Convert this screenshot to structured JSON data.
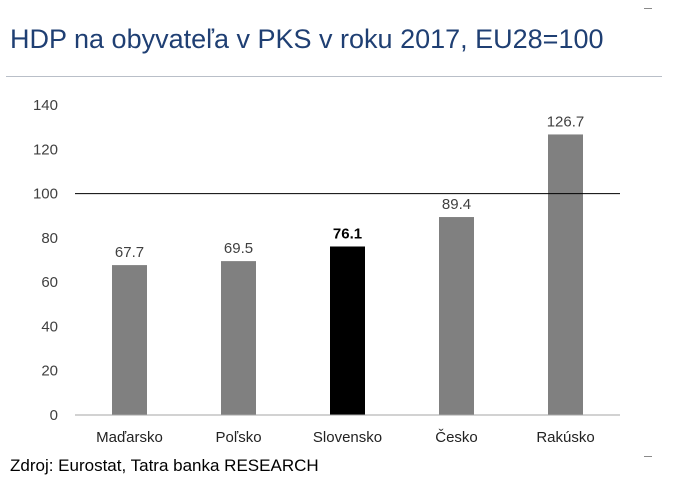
{
  "header": {
    "title": "HDP na obyvateľa v PKS v roku 2017, EU28=100"
  },
  "footer": {
    "source": "Zdroj: Eurostat, Tatra banka RESEARCH"
  },
  "chart_data": {
    "type": "bar",
    "title": "HDP na obyvateľa v PKS v roku 2017, EU28=100",
    "xlabel": "",
    "ylabel": "",
    "categories": [
      "Maďarsko",
      "Poľsko",
      "Slovensko",
      "Česko",
      "Rakúsko"
    ],
    "values": [
      67.7,
      69.5,
      76.1,
      89.4,
      126.7
    ],
    "value_labels": [
      "67.7",
      "69.5",
      "76.1",
      "89.4",
      "126.7"
    ],
    "highlight_index": 2,
    "ylim": [
      0,
      140
    ],
    "yticks": [
      0,
      20,
      40,
      60,
      80,
      100,
      120,
      140
    ],
    "reference_line": 100,
    "grid": false,
    "colors": {
      "bar": "#808080",
      "highlight": "#000000",
      "reference": "#000000",
      "axis": "#a6a6a6",
      "text": "#404040"
    }
  }
}
